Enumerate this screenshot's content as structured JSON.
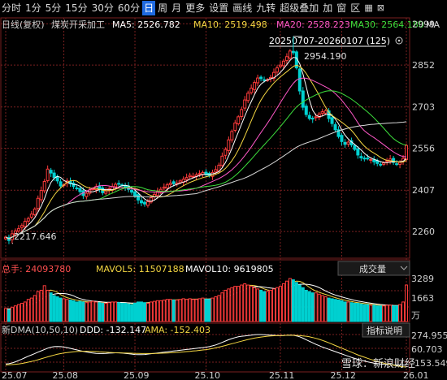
{
  "toolbar": {
    "items": [
      "分时",
      "1分",
      "5分",
      "15分",
      "30分",
      "60分",
      "日",
      "周",
      "月",
      "更多",
      "设置",
      "画线",
      "九转",
      "超级叠加",
      "加",
      "窗",
      "区"
    ],
    "active": "日",
    "icons": [
      "grid-icon",
      "close-icon"
    ]
  },
  "legend": {
    "title": "日线(复权)",
    "name": "煤炭开采加工",
    "ma5": "MA5: 2526.782",
    "ma10": "MA10: 2519.498",
    "ma20": "MA20: 2528.223",
    "ma30": "MA30: 2564.180",
    "ma_last": "MA",
    "range_label": "20250707-20260107 (125)"
  },
  "annotations": {
    "high": "2954.190",
    "low": "2217.646"
  },
  "volume": {
    "title": "总手: 24093780",
    "mavol5": "MAVOL5: 11507188",
    "mavol10": "MAVOL10: 9619805",
    "dropdown": "成交量",
    "ticks": [
      "3289",
      "1663"
    ],
    "unit": "万"
  },
  "indicator": {
    "title": "新DMA(10,50,10)",
    "ddd": "DDD: -132.147",
    "ama": "AMA: -152.403",
    "button": "指标说明",
    "ticks": [
      "274.955",
      "60.703",
      "-153.549"
    ]
  },
  "watermark": "雪球：新浪财经",
  "colors": {
    "up": "#ff3b3b",
    "down": "#00d0d0",
    "ma5": "#ffffff",
    "ma10": "#f5d742",
    "ma20": "#ff58c8",
    "ma30": "#3de03d",
    "ma60": "#d8d8d8",
    "accent": "#1f6ae0",
    "text": "#cfcfcf",
    "grid": "#7a2020"
  },
  "chart_data": {
    "type": "candlestick",
    "x_ticks": [
      "25.07",
      "25.08",
      "25.09",
      "25.10",
      "25.11",
      "25.12",
      "26.01"
    ],
    "y_ticks": [
      2999,
      2852,
      2703,
      2556,
      2407,
      2260
    ],
    "ylim": [
      2165,
      3020
    ],
    "high_point": {
      "value": 2954.19,
      "index": 89
    },
    "low_point": {
      "value": 2217.646,
      "index": 2
    },
    "closes": [
      2240,
      2228,
      2252,
      2262,
      2270,
      2281,
      2296,
      2306,
      2322,
      2340,
      2378,
      2406,
      2438,
      2482,
      2468,
      2452,
      2440,
      2422,
      2426,
      2440,
      2430,
      2420,
      2414,
      2402,
      2388,
      2396,
      2408,
      2412,
      2420,
      2410,
      2398,
      2404,
      2412,
      2420,
      2428,
      2430,
      2424,
      2418,
      2410,
      2400,
      2386,
      2372,
      2362,
      2358,
      2366,
      2380,
      2392,
      2402,
      2410,
      2418,
      2426,
      2432,
      2430,
      2432,
      2440,
      2446,
      2452,
      2460,
      2456,
      2462,
      2466,
      2470,
      2462,
      2458,
      2470,
      2480,
      2496,
      2528,
      2552,
      2586,
      2616,
      2646,
      2668,
      2694,
      2728,
      2752,
      2770,
      2790,
      2806,
      2804,
      2798,
      2800,
      2808,
      2826,
      2842,
      2852,
      2866,
      2882,
      2902,
      2896,
      2842,
      2760,
      2702,
      2676,
      2662,
      2660,
      2668,
      2678,
      2686,
      2690,
      2662,
      2644,
      2622,
      2598,
      2580,
      2570,
      2578,
      2568,
      2552,
      2532,
      2522,
      2518,
      2520,
      2516,
      2508,
      2502,
      2498,
      2504,
      2512,
      2518,
      2506,
      2500,
      2506,
      2520,
      2566
    ],
    "volumes": [
      20,
      18,
      22,
      24,
      26,
      28,
      30,
      34,
      36,
      40,
      46,
      48,
      55,
      48,
      44,
      40,
      38,
      36,
      35,
      34,
      33,
      32,
      30,
      31,
      30,
      29,
      30,
      31,
      30,
      29,
      28,
      28,
      29,
      30,
      30,
      29,
      28,
      28,
      27,
      26,
      28,
      30,
      30,
      29,
      28,
      30,
      31,
      32,
      32,
      33,
      34,
      34,
      33,
      33,
      34,
      35,
      34,
      35,
      34,
      34,
      35,
      36,
      34,
      34,
      36,
      38,
      40,
      44,
      48,
      50,
      52,
      54,
      54,
      56,
      58,
      56,
      54,
      52,
      50,
      48,
      46,
      46,
      48,
      50,
      52,
      54,
      58,
      62,
      66,
      64,
      60,
      56,
      52,
      48,
      46,
      44,
      44,
      42,
      40,
      38,
      36,
      35,
      34,
      33,
      32,
      30,
      30,
      29,
      28,
      28,
      27,
      26,
      26,
      25,
      25,
      24,
      24,
      24,
      25,
      25,
      24,
      24,
      26,
      30,
      56
    ],
    "ddd": [
      -120,
      -118,
      -110,
      -98,
      -84,
      -70,
      -55,
      -40,
      -26,
      -12,
      2,
      16,
      30,
      44,
      54,
      60,
      62,
      60,
      56,
      50,
      42,
      34,
      26,
      18,
      10,
      4,
      -2,
      -6,
      -10,
      -12,
      -12,
      -10,
      -8,
      -6,
      -4,
      -4,
      -6,
      -10,
      -14,
      -18,
      -22,
      -24,
      -24,
      -22,
      -18,
      -14,
      -10,
      -6,
      -2,
      2,
      6,
      10,
      14,
      18,
      22,
      26,
      30,
      34,
      38,
      42,
      46,
      50,
      54,
      60,
      68,
      78,
      90,
      104,
      118,
      132,
      144,
      154,
      162,
      168,
      172,
      176,
      180,
      184,
      186,
      186,
      184,
      182,
      180,
      178,
      176,
      176,
      176,
      178,
      180,
      178,
      172,
      162,
      148,
      132,
      116,
      100,
      84,
      70,
      56,
      44,
      32,
      20,
      8,
      -4,
      -16,
      -28,
      -40,
      -52,
      -62,
      -72,
      -82,
      -90,
      -98,
      -106,
      -112,
      -116,
      -120,
      -124,
      -126,
      -128,
      -130,
      -131,
      -132,
      -132,
      -132.147
    ],
    "ama": [
      -130,
      -129,
      -127,
      -124,
      -120,
      -115,
      -109,
      -102,
      -94,
      -86,
      -77,
      -67,
      -57,
      -47,
      -37,
      -28,
      -20,
      -13,
      -7,
      -2,
      2,
      6,
      9,
      11,
      12,
      12,
      11,
      10,
      8,
      6,
      4,
      2,
      0,
      -2,
      -4,
      -5,
      -6,
      -7,
      -8,
      -9,
      -10,
      -11,
      -12,
      -12,
      -12,
      -12,
      -11,
      -10,
      -9,
      -8,
      -6,
      -4,
      -2,
      0,
      2,
      5,
      8,
      11,
      14,
      17,
      21,
      25,
      29,
      34,
      40,
      47,
      55,
      63,
      72,
      81,
      90,
      99,
      108,
      117,
      126,
      134,
      142,
      149,
      155,
      160,
      164,
      168,
      171,
      173,
      175,
      176,
      177,
      178,
      178,
      178,
      177,
      175,
      172,
      168,
      162,
      155,
      146,
      136,
      125,
      113,
      100,
      86,
      72,
      58,
      44,
      30,
      16,
      2,
      -12,
      -26,
      -38,
      -50,
      -62,
      -74,
      -84,
      -94,
      -104,
      -112,
      -120,
      -128,
      -134,
      -140,
      -146,
      -150,
      -152.403
    ]
  }
}
